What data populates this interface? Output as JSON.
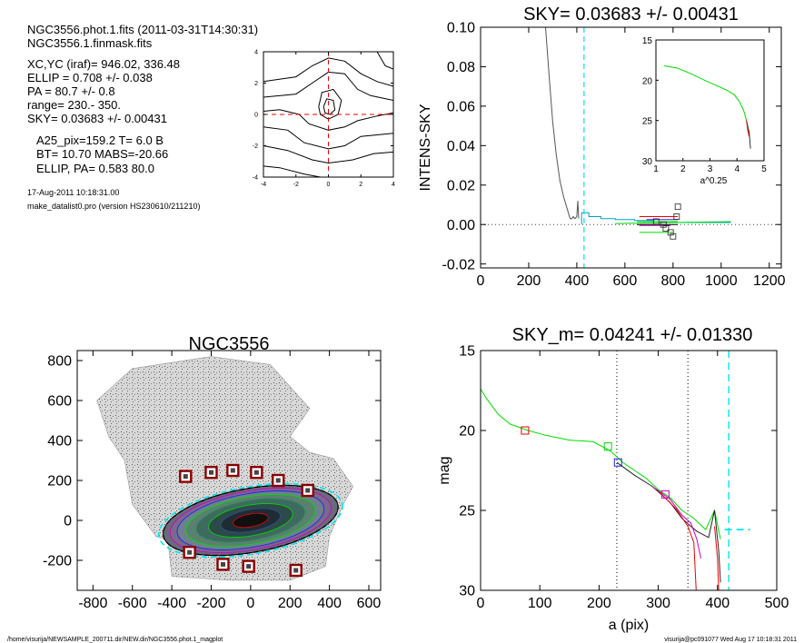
{
  "info": {
    "lines1": [
      "NGC3556.phot.1.fits  (2011-03-31T14:30:31)",
      "NGC3556.1.finmask.fits"
    ],
    "lines2": [
      "XC,YC (iraf)=   946.02, 336.48",
      "ELLIP = 0.708 +/- 0.038",
      "PA    =  80.7 +/-   0.8",
      "range=  230.-  350.",
      "SKY= 0.03683 +/- 0.00431"
    ],
    "lines3": [
      "A25_pix=159.2   T= 6.0  B",
      "BT=  10.70   MABS=-20.66",
      "ELLIP, PA= 0.583    80.0"
    ],
    "date": "17-Aug-2011 10:18:31.00",
    "program": "make_datalist0.pro (version HS230610/211210)"
  },
  "footer": {
    "left": "/home/visurija/NEWSAMPLE_200711.dir/NEW.dir/NGC3556.phot.1_magplot",
    "right": "visurija@pc091077  Wed Aug 17 10:18:31 2011"
  },
  "colors": {
    "cyan": "#00e5ee",
    "green": "#00dd00",
    "red": "#ee0000",
    "blue": "#2222ee",
    "magenta": "#cc00cc",
    "gray": "#555555"
  },
  "chart_data": [
    {
      "type": "contour",
      "xlim": [
        -4,
        4
      ],
      "ylim": [
        -4,
        4
      ],
      "xticks": [
        -4,
        -2,
        0,
        2,
        4
      ],
      "yticks": [
        -4,
        -2,
        0,
        2,
        4
      ],
      "contours": [
        [
          [
            -0.3,
            0.5
          ],
          [
            -0.1,
            1.0
          ],
          [
            0.3,
            0.9
          ],
          [
            0.4,
            0.3
          ],
          [
            0.1,
            0.0
          ],
          [
            -0.2,
            0.1
          ],
          [
            -0.3,
            0.5
          ]
        ],
        [
          [
            -0.6,
            0.5
          ],
          [
            -0.4,
            1.4
          ],
          [
            0.3,
            1.6
          ],
          [
            0.8,
            0.9
          ],
          [
            0.6,
            0.0
          ],
          [
            0.0,
            -0.3
          ],
          [
            -0.5,
            0.0
          ],
          [
            -0.6,
            0.5
          ]
        ],
        [
          [
            -4,
            1.1
          ],
          [
            -2,
            1.3
          ],
          [
            -1,
            2.0
          ],
          [
            0,
            2.7
          ],
          [
            1,
            2.6
          ],
          [
            1.8,
            1.6
          ],
          [
            2.6,
            1.2
          ],
          [
            4,
            0.9
          ]
        ],
        [
          [
            -4,
            2.1
          ],
          [
            -2,
            2.4
          ],
          [
            -1,
            3.1
          ],
          [
            0,
            3.6
          ],
          [
            1,
            3.4
          ],
          [
            2,
            2.6
          ],
          [
            3,
            2.1
          ],
          [
            4,
            1.8
          ]
        ],
        [
          [
            -4,
            0.2
          ],
          [
            -3,
            0.3
          ],
          [
            -1.8,
            0.0
          ],
          [
            -1.2,
            -0.6
          ],
          [
            0,
            -1.0
          ],
          [
            1,
            -0.8
          ],
          [
            1.8,
            -0.4
          ],
          [
            3,
            -0.1
          ],
          [
            4,
            0.1
          ]
        ],
        [
          [
            -4,
            -0.8
          ],
          [
            -2.5,
            -1.0
          ],
          [
            -1.5,
            -1.8
          ],
          [
            0,
            -2.2
          ],
          [
            1,
            -2.0
          ],
          [
            2,
            -1.4
          ],
          [
            4,
            -1.2
          ]
        ],
        [
          [
            -4,
            -2.0
          ],
          [
            -2.5,
            -2.3
          ],
          [
            -1,
            -2.9
          ],
          [
            0,
            -3.1
          ],
          [
            1.5,
            -2.9
          ],
          [
            2.8,
            -2.5
          ],
          [
            4,
            -2.4
          ]
        ],
        [
          [
            -4,
            -3.3
          ],
          [
            -3,
            -3.4
          ],
          [
            -1.5,
            -3.8
          ],
          [
            -0.5,
            -4
          ]
        ],
        [
          [
            3.0,
            4
          ],
          [
            3.5,
            3.1
          ],
          [
            4,
            2.9
          ]
        ]
      ],
      "crosshair": [
        0,
        0
      ]
    },
    {
      "type": "line",
      "title": "SKY= 0.03683 +/- 0.00431",
      "xlabel": "",
      "ylabel": "INTENS-SKY",
      "xlim": [
        0,
        1250
      ],
      "ylim": [
        -0.022,
        0.1
      ],
      "xticks": [
        0,
        200,
        400,
        600,
        800,
        1000,
        1200
      ],
      "yticks": [
        -0.02,
        0.0,
        0.02,
        0.04,
        0.06,
        0.08,
        0.1
      ],
      "ytick_labels": [
        "-0.02",
        "0.00",
        "0.02",
        "0.04",
        "0.06",
        "0.08",
        "0.10"
      ],
      "profile": {
        "x": [
          270,
          285,
          300,
          315,
          330,
          345,
          360,
          372,
          380,
          385,
          392,
          400,
          404,
          408
        ],
        "y": [
          0.1,
          0.075,
          0.052,
          0.035,
          0.022,
          0.014,
          0.008,
          0.003,
          0.003,
          0.004,
          0.003,
          0.004,
          0.012,
          0.003
        ]
      },
      "sky_steps": {
        "x": [
          420,
          420,
          450,
          450,
          500,
          500,
          560,
          560,
          640,
          640,
          720,
          720,
          800,
          800,
          1040
        ],
        "y": [
          0.0,
          0.006,
          0.006,
          0.004,
          0.004,
          0.003,
          0.003,
          0.0025,
          0.0025,
          0.002,
          0.002,
          0.0015,
          0.0015,
          0.001,
          0.001
        ]
      },
      "green_line": {
        "x": [
          560,
          1040
        ],
        "y": [
          0.0005,
          0.0015
        ]
      },
      "segments": [
        {
          "x": [
            660,
            820
          ],
          "y": [
            0.004,
            0.004
          ],
          "color": "red"
        },
        {
          "x": [
            650,
            820
          ],
          "y": [
            0.0015,
            0.0015
          ],
          "color": "green"
        },
        {
          "x": [
            690,
            820
          ],
          "y": [
            0.0025,
            0.0025
          ],
          "color": "blue"
        },
        {
          "x": [
            660,
            790
          ],
          "y": [
            -0.0005,
            -0.0005
          ],
          "color": "magenta"
        },
        {
          "x": [
            660,
            800
          ],
          "y": [
            -0.004,
            -0.004
          ],
          "color": "green"
        },
        {
          "x": [
            650,
            820
          ],
          "y": [
            0.0,
            0.0
          ],
          "color": "black"
        }
      ],
      "squares": [
        {
          "x": [
            730,
            760,
            770,
            790,
            800,
            815,
            820
          ],
          "y": [
            0.0015,
            0.0,
            -0.002,
            -0.004,
            -0.006,
            0.004,
            0.009
          ]
        }
      ],
      "vlines": [
        {
          "x": 430,
          "color": "cyan",
          "dash": true
        }
      ],
      "inset": {
        "xlabel": "a^0.25",
        "xlim": [
          1,
          5
        ],
        "ylim": [
          15,
          30
        ],
        "xticks": [
          1,
          2,
          3,
          4,
          5
        ],
        "yticks": [
          15,
          20,
          25,
          30
        ],
        "curve": {
          "x": [
            1.3,
            1.8,
            2.3,
            2.8,
            3.2,
            3.6,
            3.9,
            4.1,
            4.25,
            4.35,
            4.45
          ],
          "y": [
            18.2,
            18.5,
            19.2,
            20.0,
            20.6,
            21.2,
            21.8,
            22.7,
            23.8,
            25.0,
            26.5
          ]
        },
        "tail_dark": {
          "x": [
            4.35,
            4.4,
            4.45,
            4.5
          ],
          "y": [
            25.0,
            25.8,
            26.4,
            28.5
          ]
        },
        "tail_red": {
          "x": [
            4.35,
            4.4,
            4.45
          ],
          "y": [
            25.0,
            26.2,
            27.0
          ]
        }
      }
    },
    {
      "type": "image",
      "title": "NGC3556",
      "xlim": [
        -880,
        660
      ],
      "ylim": [
        -350,
        850
      ],
      "xticks": [
        -800,
        -600,
        -400,
        -200,
        0,
        200,
        400,
        600
      ],
      "yticks": [
        -200,
        0,
        200,
        400,
        600,
        800
      ],
      "ellipse": {
        "cx": 0,
        "cy": 0,
        "a": 450,
        "b": 160,
        "angle_deg": 10
      },
      "mask_squares": {
        "x": [
          -330,
          -200,
          -90,
          30,
          140,
          290,
          -310,
          -140,
          -10,
          230
        ],
        "y": [
          220,
          240,
          250,
          240,
          200,
          150,
          -160,
          -220,
          -230,
          -250
        ]
      }
    },
    {
      "type": "line",
      "title": "SKY_m=  0.04241 +/- 0.01330",
      "xlabel": "a (pix)",
      "ylabel": "mag",
      "xlim": [
        0,
        500
      ],
      "ylim": [
        30,
        15
      ],
      "y_inverted": true,
      "xticks": [
        0,
        100,
        200,
        300,
        400,
        500
      ],
      "yticks": [
        15,
        20,
        25,
        30
      ],
      "green": {
        "x": [
          0,
          10,
          30,
          50,
          80,
          110,
          150,
          190,
          220,
          240,
          260,
          280,
          300,
          320,
          340,
          360,
          380,
          395,
          405
        ],
        "y": [
          17.4,
          18.0,
          19.0,
          19.6,
          20.0,
          20.3,
          20.6,
          20.7,
          21.3,
          22.0,
          22.5,
          23.0,
          23.7,
          24.2,
          25.0,
          25.5,
          26.2,
          25.0,
          26.8
        ]
      },
      "black": {
        "x": [
          230,
          260,
          290,
          320,
          340,
          355,
          365,
          375,
          385,
          395,
          402,
          405
        ],
        "y": [
          22.0,
          22.8,
          23.5,
          24.5,
          25.5,
          26.0,
          26.3,
          26.5,
          26.7,
          25.0,
          27.5,
          29.5
        ]
      },
      "red": {
        "x": [
          300,
          330,
          350,
          360,
          362,
          364
        ],
        "y": [
          23.8,
          24.9,
          26.0,
          27.0,
          28.5,
          30
        ]
      },
      "red2": {
        "x": [
          395,
          400,
          402
        ],
        "y": [
          26.0,
          28.0,
          30
        ]
      },
      "magenta": {
        "x": [
          290,
          320,
          340,
          355,
          365,
          372
        ],
        "y": [
          23.5,
          24.3,
          25.3,
          25.8,
          26.8,
          28.0
        ]
      },
      "squares": [
        {
          "x": 75,
          "y": 20.0,
          "color": "red"
        },
        {
          "x": 215,
          "y": 21.0,
          "color": "green"
        },
        {
          "x": 232,
          "y": 22.0,
          "color": "blue"
        },
        {
          "x": 312,
          "y": 24.0,
          "color": "magenta"
        }
      ],
      "vlines": [
        {
          "x": 230,
          "color": "black",
          "dash": "dot"
        },
        {
          "x": 350,
          "color": "black",
          "dash": "dot"
        },
        {
          "x": 419,
          "color": "cyan",
          "dash": "dash"
        }
      ],
      "sky_level": {
        "x": [
          412,
          455
        ],
        "y": 26.2
      }
    }
  ]
}
